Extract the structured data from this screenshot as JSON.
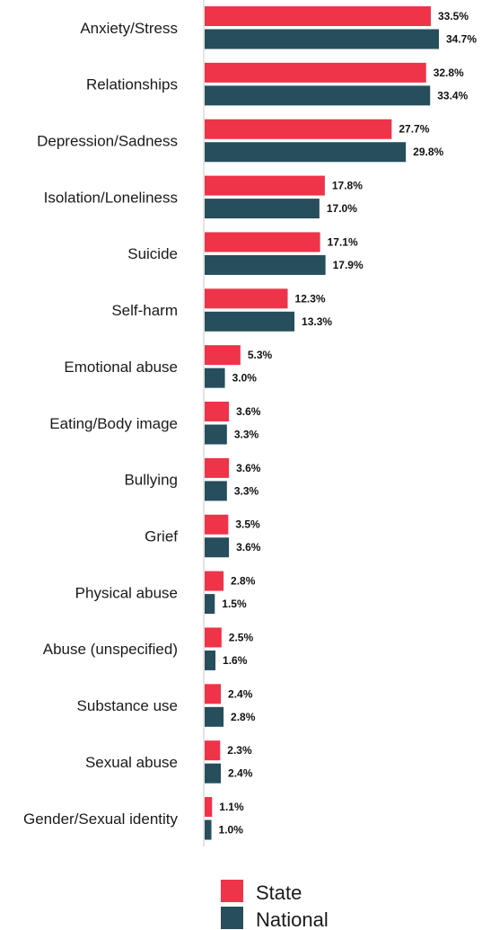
{
  "chart_data": {
    "type": "bar",
    "orientation": "horizontal",
    "categories": [
      "Anxiety/Stress",
      "Relationships",
      "Depression/Sadness",
      "Isolation/Loneliness",
      "Suicide",
      "Self-harm",
      "Emotional abuse",
      "Eating/Body image",
      "Bullying",
      "Grief",
      "Physical abuse",
      "Abuse (unspecified)",
      "Substance use",
      "Sexual abuse",
      "Gender/Sexual identity"
    ],
    "series": [
      {
        "name": "State",
        "color": "#ef3349",
        "values": [
          33.5,
          32.8,
          27.7,
          17.8,
          17.1,
          12.3,
          5.3,
          3.6,
          3.6,
          3.5,
          2.8,
          2.5,
          2.4,
          2.3,
          1.1
        ],
        "labels": [
          "33.5%",
          "32.8%",
          "27.7%",
          "17.8%",
          "17.1%",
          "12.3%",
          "5.3%",
          "3.6%",
          "3.6%",
          "3.5%",
          "2.8%",
          "2.5%",
          "2.4%",
          "2.3%",
          "1.1%"
        ]
      },
      {
        "name": "National",
        "color": "#264e5c",
        "values": [
          34.7,
          33.4,
          29.8,
          17.0,
          17.9,
          13.3,
          3.0,
          3.3,
          3.3,
          3.6,
          1.5,
          1.6,
          2.8,
          2.4,
          1.0
        ],
        "labels": [
          "34.7%",
          "33.4%",
          "29.8%",
          "17.0%",
          "17.9%",
          "13.3%",
          "3.0%",
          "3.3%",
          "3.3%",
          "3.6%",
          "1.5%",
          "1.6%",
          "2.8%",
          "2.4%",
          "1.0%"
        ]
      }
    ],
    "xlim": [
      0,
      34.7
    ],
    "grid": false,
    "legend_position": "bottom"
  }
}
